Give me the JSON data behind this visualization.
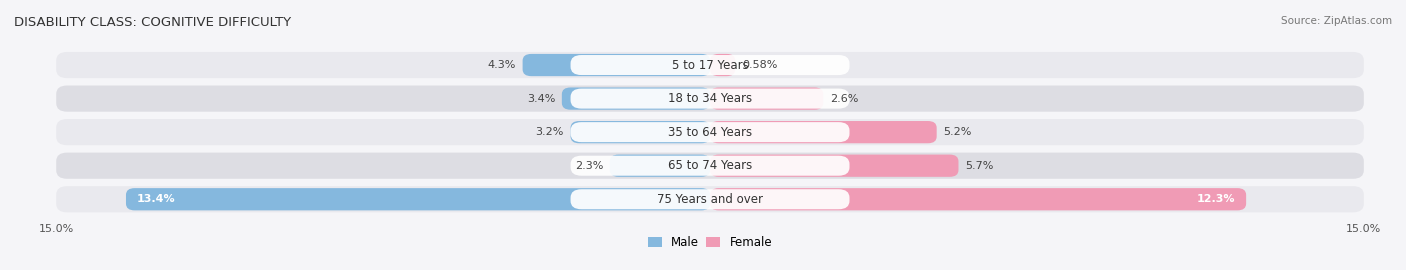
{
  "title": "DISABILITY CLASS: COGNITIVE DIFFICULTY",
  "source": "Source: ZipAtlas.com",
  "categories": [
    "5 to 17 Years",
    "18 to 34 Years",
    "35 to 64 Years",
    "65 to 74 Years",
    "75 Years and over"
  ],
  "male_values": [
    4.3,
    3.4,
    3.2,
    2.3,
    13.4
  ],
  "female_values": [
    0.58,
    2.6,
    5.2,
    5.7,
    12.3
  ],
  "male_color": "#85b8de",
  "female_color": "#f09bb5",
  "male_label_color": "#444444",
  "female_label_color": "#444444",
  "bar_max": 15.0,
  "row_bg_light": "#e9e9ee",
  "row_bg_dark": "#dddde3",
  "title_fontsize": 9.5,
  "label_fontsize": 8,
  "category_fontsize": 8.5,
  "axis_label_fontsize": 8,
  "legend_fontsize": 8.5,
  "background_color": "#f5f5f8"
}
